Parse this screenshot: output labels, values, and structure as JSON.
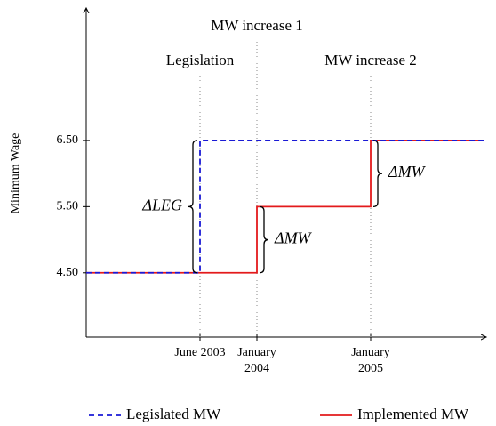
{
  "chart_data": {
    "type": "step-line",
    "y_label": "Minimum Wage",
    "xlim": [
      0,
      7
    ],
    "ylim": [
      3.53,
      8.5
    ],
    "xticks": [
      {
        "value": 2,
        "label": "June 2003"
      },
      {
        "value": 3,
        "label": "January 2004"
      },
      {
        "value": 5,
        "label": "January 2005"
      }
    ],
    "yticks": [
      {
        "value": 4.5,
        "label": "4.50"
      },
      {
        "value": 5.5,
        "label": "5.50"
      },
      {
        "value": 6.5,
        "label": "6.50"
      }
    ],
    "series": [
      {
        "name": "Implemented MW",
        "color": "#e31a1c",
        "dashed": false,
        "x": [
          0,
          3,
          3,
          5,
          5,
          7
        ],
        "values": [
          4.5,
          4.5,
          5.5,
          5.5,
          6.5,
          6.5
        ]
      },
      {
        "name": "Legislated MW",
        "color": "#1a1ad6",
        "dashed": true,
        "x": [
          0,
          2,
          2,
          7
        ],
        "values": [
          4.5,
          4.5,
          6.5,
          6.5
        ]
      }
    ],
    "legend_order": [
      1,
      0
    ],
    "events": [
      {
        "x": 2,
        "label": "Legislation",
        "level": 2
      },
      {
        "x": 3,
        "label": "MW increase 1",
        "level": 1
      },
      {
        "x": 5,
        "label": "MW increase 2",
        "level": 2
      }
    ],
    "braces": [
      {
        "x": 2,
        "from": 4.5,
        "to": 6.5,
        "side": "left",
        "label": "ΔLEG"
      },
      {
        "x": 3,
        "from": 4.5,
        "to": 5.5,
        "side": "right",
        "label": "ΔMW"
      },
      {
        "x": 5,
        "from": 5.5,
        "to": 6.5,
        "side": "right",
        "label": "ΔMW"
      }
    ]
  }
}
